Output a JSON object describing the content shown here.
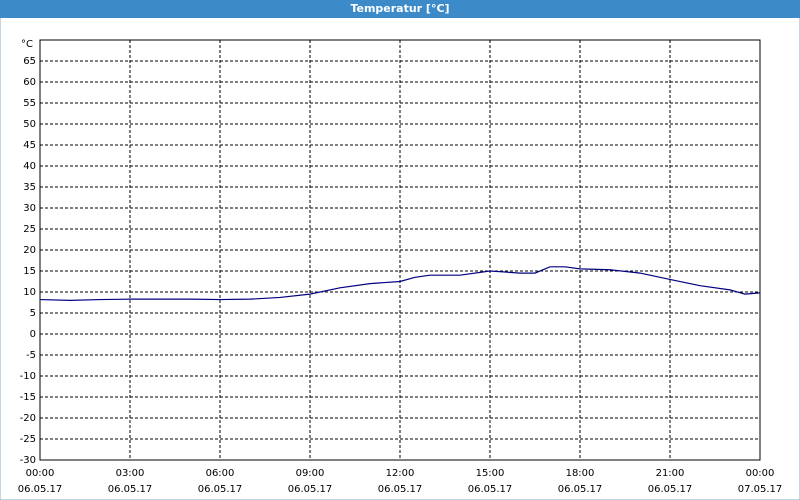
{
  "chart_data": {
    "type": "line",
    "title": "Temperatur [°C]",
    "y_label": "°C",
    "x": [
      0,
      1,
      2,
      3,
      4,
      5,
      6,
      7,
      8,
      9,
      10,
      11,
      12,
      12.5,
      13,
      14,
      15,
      16,
      16.5,
      17,
      17.5,
      18,
      19,
      20,
      21,
      22,
      23,
      23.5,
      24
    ],
    "series": [
      {
        "name": "Temperatur",
        "color": "#000080",
        "values": [
          8.2,
          8.0,
          8.2,
          8.3,
          8.3,
          8.3,
          8.2,
          8.3,
          8.7,
          9.5,
          11.0,
          12.0,
          12.5,
          13.5,
          14.0,
          14.0,
          15.0,
          14.5,
          14.5,
          16.0,
          16.0,
          15.5,
          15.3,
          14.5,
          13.0,
          11.5,
          10.5,
          9.5,
          9.8
        ]
      }
    ],
    "xlim": [
      0,
      24
    ],
    "xticks": [
      {
        "value": 0,
        "label": "00:00",
        "date": "06.05.17"
      },
      {
        "value": 3,
        "label": "03:00",
        "date": "06.05.17"
      },
      {
        "value": 6,
        "label": "06:00",
        "date": "06.05.17"
      },
      {
        "value": 9,
        "label": "09:00",
        "date": "06.05.17"
      },
      {
        "value": 12,
        "label": "12:00",
        "date": "06.05.17"
      },
      {
        "value": 15,
        "label": "15:00",
        "date": "06.05.17"
      },
      {
        "value": 18,
        "label": "18:00",
        "date": "06.05.17"
      },
      {
        "value": 21,
        "label": "21:00",
        "date": "06.05.17"
      },
      {
        "value": 24,
        "label": "00:00",
        "date": "07.05.17"
      }
    ],
    "ylim": [
      -30,
      70
    ],
    "yticks": [
      -30,
      -25,
      -20,
      -15,
      -10,
      -5,
      0,
      5,
      10,
      15,
      20,
      25,
      30,
      35,
      40,
      45,
      50,
      55,
      60,
      65
    ],
    "grid": true
  }
}
